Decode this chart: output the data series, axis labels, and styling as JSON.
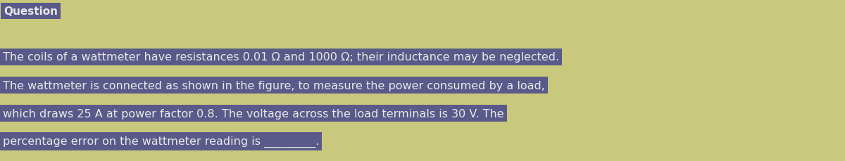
{
  "background_color": "#c9c97d",
  "question_label": "Question",
  "question_label_bg": "#5a5a8a",
  "question_label_color": "#e8e8e8",
  "question_label_fontsize": 11,
  "text_lines": [
    "The coils of a wattmeter have resistances 0.01 Ω and 1000 Ω; their inductance may be neglected.",
    "The wattmeter is connected as shown in the figure, to measure the power consumed by a load,",
    "which draws 25 A at power factor 0.8. The voltage across the load terminals is 30 V. The",
    "percentage error on the wattmeter reading is _________."
  ],
  "text_bg": "#5a5a8a",
  "text_color": "#e8e8e8",
  "text_fontsize": 11.5,
  "fig_width": 12.0,
  "fig_height": 2.3,
  "dpi": 100
}
